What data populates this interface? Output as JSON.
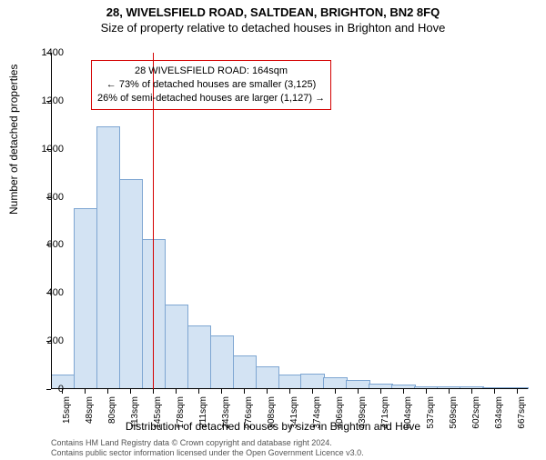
{
  "title": "28, WIVELSFIELD ROAD, SALTDEAN, BRIGHTON, BN2 8FQ",
  "subtitle": "Size of property relative to detached houses in Brighton and Hove",
  "ylabel": "Number of detached properties",
  "xlabel": "Distribution of detached houses by size in Brighton and Hove",
  "chart": {
    "type": "histogram",
    "background_color": "#ffffff",
    "axis_color": "#000000",
    "bar_fill": "#d3e3f3",
    "bar_stroke": "#7ea6d2",
    "ylim": [
      0,
      1400
    ],
    "ytick_step": 200,
    "categories": [
      "15sqm",
      "48sqm",
      "80sqm",
      "113sqm",
      "145sqm",
      "178sqm",
      "211sqm",
      "243sqm",
      "276sqm",
      "308sqm",
      "341sqm",
      "374sqm",
      "406sqm",
      "439sqm",
      "471sqm",
      "504sqm",
      "537sqm",
      "569sqm",
      "602sqm",
      "634sqm",
      "667sqm"
    ],
    "values": [
      55,
      750,
      1090,
      870,
      620,
      350,
      260,
      220,
      135,
      90,
      55,
      60,
      45,
      35,
      20,
      15,
      8,
      6,
      6,
      4,
      4
    ]
  },
  "reference_line": {
    "color": "#d40000",
    "position_category_index": 4.5
  },
  "annotation": {
    "border_color": "#d40000",
    "line1": "28 WIVELSFIELD ROAD: 164sqm",
    "line2": "← 73% of detached houses are smaller (3,125)",
    "line3": "26% of semi-detached houses are larger (1,127) →"
  },
  "footer": {
    "line1": "Contains HM Land Registry data © Crown copyright and database right 2024.",
    "line2": "Contains public sector information licensed under the Open Government Licence v3.0."
  }
}
